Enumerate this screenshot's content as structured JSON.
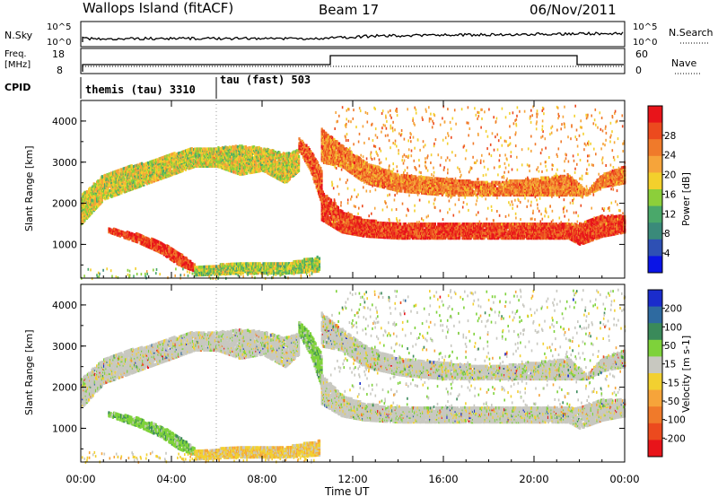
{
  "header": {
    "station": "Wallops Island (fitACF)",
    "beam": "Beam 17",
    "date": "06/Nov/2011"
  },
  "top_panels": {
    "nsky_label": "N.Sky",
    "nsky_ticks": [
      "10^5",
      "10^0"
    ],
    "nsearch_label": "N.Search",
    "nsearch_ticks": [
      "10^5",
      "10^0"
    ],
    "freq_label": "Freq.",
    "freq_unit": "[MHz]",
    "freq_ticks": [
      "18",
      "8"
    ],
    "nave_label": "Nave",
    "nave_ticks": [
      "60",
      "0"
    ],
    "cpid_label": "CPID",
    "cpid_segments": [
      {
        "label": "themis (tau) 3310",
        "start_hour": 0,
        "end_hour": 6
      },
      {
        "label": "tau (fast) 503",
        "start_hour": 6,
        "end_hour": 24
      }
    ]
  },
  "chart_data": [
    {
      "type": "heatmap",
      "name": "power",
      "ylabel": "Slant Range [km]",
      "xlabel": "Time UT",
      "xlim": [
        0,
        24
      ],
      "ylim": [
        180,
        4500
      ],
      "colorbar_label": "Power [dB]",
      "colorbar_ticks": [
        "4",
        "8",
        "12",
        "16",
        "20",
        "24",
        "28"
      ],
      "colorbar_colors": [
        "#0a14e6",
        "#2e50b4",
        "#3a8a7a",
        "#4aa86a",
        "#8ccf3a",
        "#f3d02c",
        "#f6a43a",
        "#f07a2a",
        "#ec4a1e",
        "#e8141a"
      ],
      "bands": [
        {
          "x": [
            0,
            1,
            2,
            3,
            4,
            5,
            6,
            7,
            8,
            9,
            9.6
          ],
          "lower": [
            1500,
            2100,
            2300,
            2500,
            2700,
            2900,
            2900,
            2700,
            2800,
            2500,
            2800
          ],
          "upper": [
            2200,
            2700,
            2900,
            3000,
            3200,
            3350,
            3350,
            3400,
            3350,
            3200,
            3300
          ],
          "level": 16
        },
        {
          "x": [
            9.6,
            10.1,
            10.6
          ],
          "lower": [
            3300,
            2800,
            2000
          ],
          "upper": [
            3600,
            3300,
            2800
          ],
          "level": 24
        },
        {
          "x": [
            10.6,
            11.5,
            12.5,
            14,
            16,
            18,
            20,
            21.5,
            22,
            23,
            24
          ],
          "lower": [
            1600,
            1300,
            1200,
            1150,
            1150,
            1150,
            1150,
            1150,
            1000,
            1200,
            1300
          ],
          "upper": [
            2300,
            1800,
            1600,
            1500,
            1500,
            1500,
            1500,
            1500,
            1500,
            1700,
            1700
          ],
          "level": 26
        },
        {
          "x": [
            10.6,
            11.5,
            12.5,
            14,
            16,
            18,
            20,
            21.5,
            22.3,
            23,
            24
          ],
          "lower": [
            3000,
            2900,
            2500,
            2300,
            2200,
            2200,
            2200,
            2200,
            2200,
            2400,
            2500
          ],
          "upper": [
            3800,
            3400,
            3000,
            2700,
            2600,
            2500,
            2600,
            2700,
            2300,
            2700,
            2900
          ],
          "level": 22
        },
        {
          "x": [
            1.2,
            2.5,
            3.5,
            4.3,
            5
          ],
          "lower": [
            1300,
            1050,
            800,
            500,
            350
          ],
          "upper": [
            1400,
            1250,
            1050,
            800,
            500
          ],
          "level": 26
        },
        {
          "x": [
            5,
            7,
            9,
            10.5
          ],
          "lower": [
            250,
            300,
            300,
            350
          ],
          "upper": [
            450,
            550,
            550,
            700
          ],
          "level": 14
        }
      ]
    },
    {
      "type": "heatmap",
      "name": "velocity",
      "ylabel": "Slant Range [km]",
      "xlabel": "Time UT",
      "xlim": [
        0,
        24
      ],
      "ylim": [
        180,
        4500
      ],
      "colorbar_label": "Velocity [m s-1]",
      "colorbar_ticks": [
        "200",
        "100",
        "50",
        "15",
        "-15",
        "-50",
        "-100",
        "-200"
      ],
      "colorbar_colors": [
        "#1a2ccc",
        "#2e6aa0",
        "#3a8a5a",
        "#7ed23a",
        "#c8c8c0",
        "#f2d030",
        "#f6a43a",
        "#f07a2a",
        "#ec4a1e",
        "#e8141a"
      ],
      "bands": [
        {
          "x": [
            0,
            1,
            2,
            3,
            4,
            5,
            6,
            7,
            8,
            9,
            9.6
          ],
          "lower": [
            1500,
            2100,
            2300,
            2500,
            2700,
            2900,
            2900,
            2700,
            2800,
            2500,
            2800
          ],
          "upper": [
            2200,
            2700,
            2900,
            3000,
            3200,
            3350,
            3350,
            3400,
            3350,
            3200,
            3300
          ],
          "level": 0
        },
        {
          "x": [
            9.6,
            10.1,
            10.6
          ],
          "lower": [
            3300,
            2800,
            2000
          ],
          "upper": [
            3600,
            3300,
            2800
          ],
          "level": 50
        },
        {
          "x": [
            10.6,
            11.5,
            12.5,
            14,
            16,
            18,
            20,
            21.5,
            22,
            23,
            24
          ],
          "lower": [
            1600,
            1300,
            1200,
            1150,
            1150,
            1150,
            1150,
            1150,
            1000,
            1200,
            1300
          ],
          "upper": [
            2300,
            1800,
            1600,
            1500,
            1500,
            1500,
            1500,
            1500,
            1500,
            1700,
            1700
          ],
          "level": 0
        },
        {
          "x": [
            10.6,
            11.5,
            12.5,
            14,
            16,
            18,
            20,
            21.5,
            22.3,
            23,
            24
          ],
          "lower": [
            3000,
            2900,
            2500,
            2300,
            2200,
            2200,
            2200,
            2200,
            2200,
            2400,
            2500
          ],
          "upper": [
            3800,
            3400,
            3000,
            2700,
            2600,
            2500,
            2600,
            2700,
            2300,
            2700,
            2900
          ],
          "level": 0
        },
        {
          "x": [
            1.2,
            2.5,
            3.5,
            4.3,
            5
          ],
          "lower": [
            1300,
            1050,
            800,
            500,
            350
          ],
          "upper": [
            1400,
            1250,
            1050,
            800,
            500
          ],
          "level": 30
        },
        {
          "x": [
            5,
            7,
            9,
            10.5
          ],
          "lower": [
            250,
            300,
            300,
            350
          ],
          "upper": [
            450,
            550,
            550,
            700
          ],
          "level": -40
        }
      ]
    }
  ],
  "y_ticks": [
    "1000",
    "2000",
    "3000",
    "4000"
  ],
  "x_ticks": [
    "00:00",
    "04:00",
    "08:00",
    "12:00",
    "16:00",
    "20:00",
    "00:00"
  ]
}
